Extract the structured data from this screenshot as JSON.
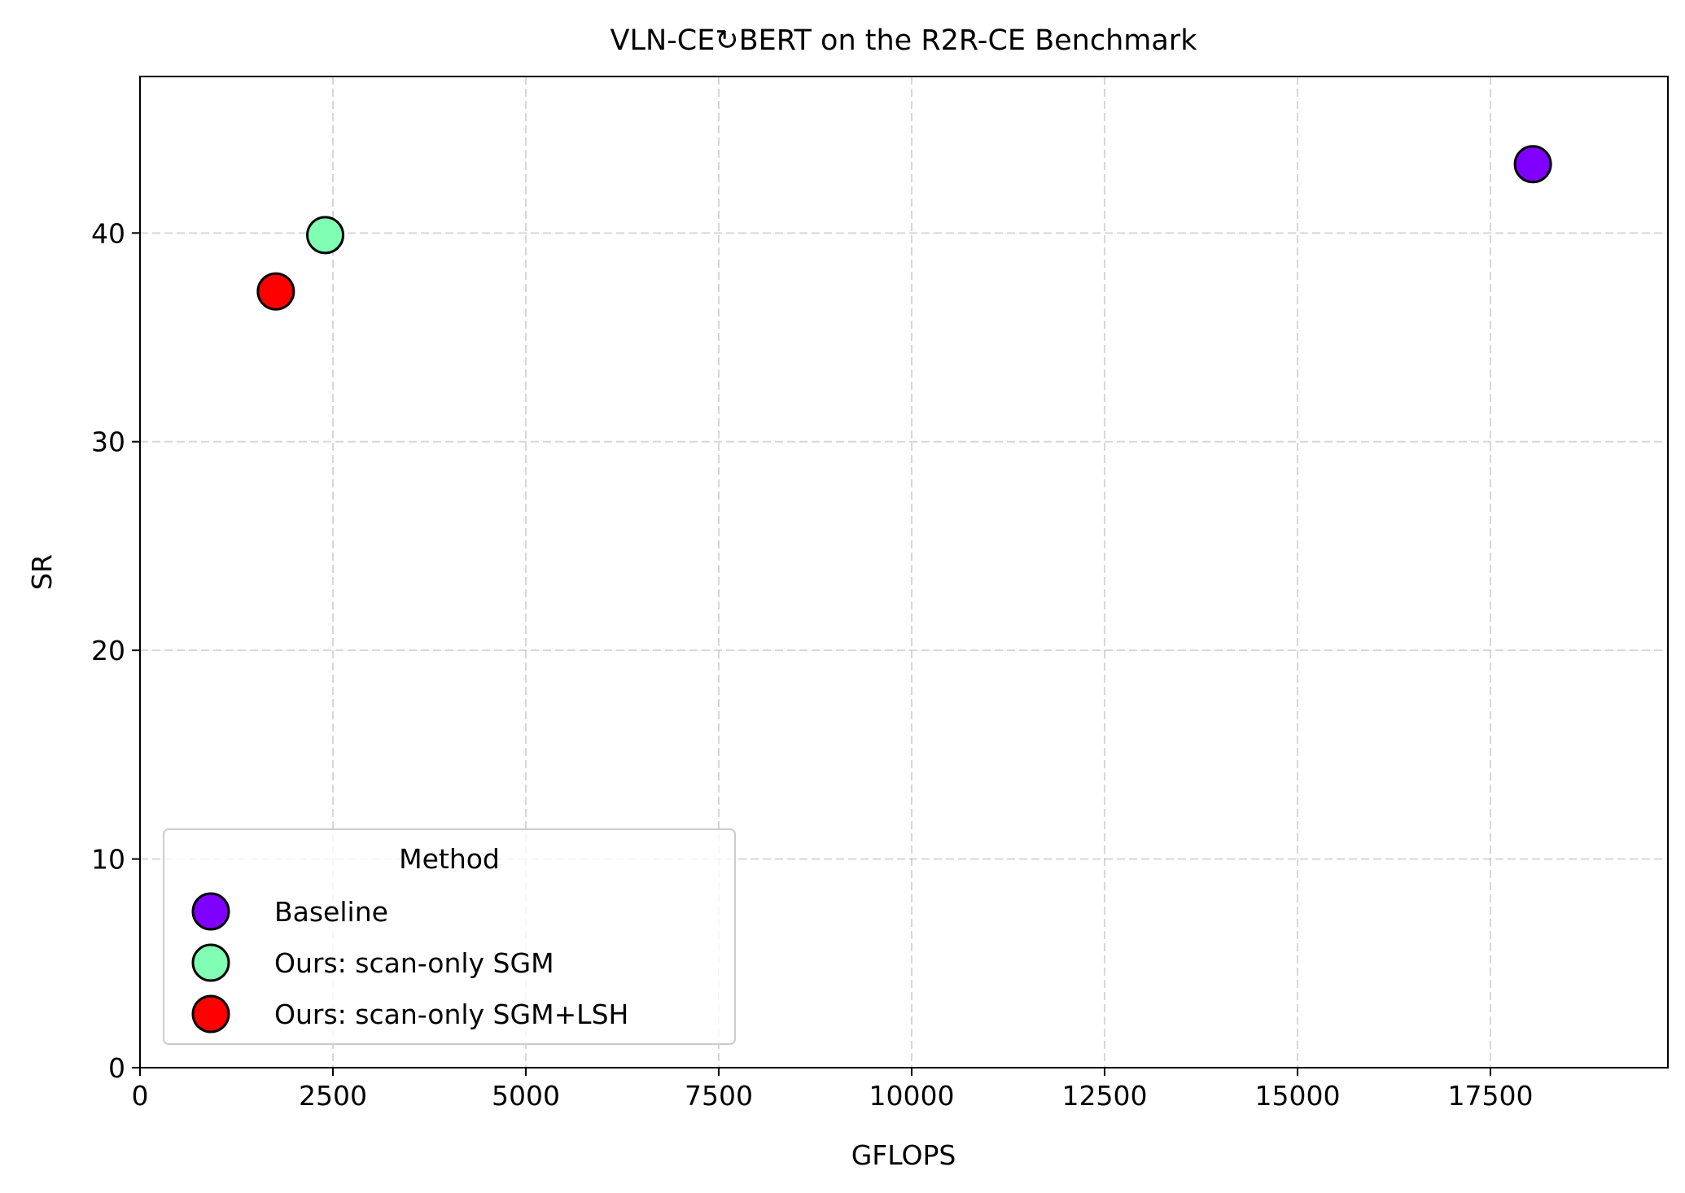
{
  "chart_data": {
    "type": "scatter",
    "title": "VLN-CE↻BERT on the R2R-CE Benchmark",
    "xlabel": "GFLOPS",
    "ylabel": "SR",
    "xlim": [
      0,
      19800
    ],
    "ylim": [
      0,
      47.5
    ],
    "xticks": [
      0,
      2500,
      5000,
      7500,
      10000,
      12500,
      15000,
      17500
    ],
    "yticks": [
      0,
      10,
      20,
      30,
      40
    ],
    "grid": true,
    "legend": {
      "title": "Method",
      "placement": "lower-left"
    },
    "series": [
      {
        "name": "Baseline",
        "color": "#8000ff",
        "points": [
          {
            "x": 18050,
            "y": 43.3
          }
        ]
      },
      {
        "name": "Ours: scan-only SGM",
        "color": "#80ffb4",
        "points": [
          {
            "x": 2400,
            "y": 39.9
          }
        ]
      },
      {
        "name": "Ours: scan-only SGM+LSH",
        "color": "#ff0000",
        "points": [
          {
            "x": 1760,
            "y": 37.2
          }
        ]
      }
    ]
  }
}
